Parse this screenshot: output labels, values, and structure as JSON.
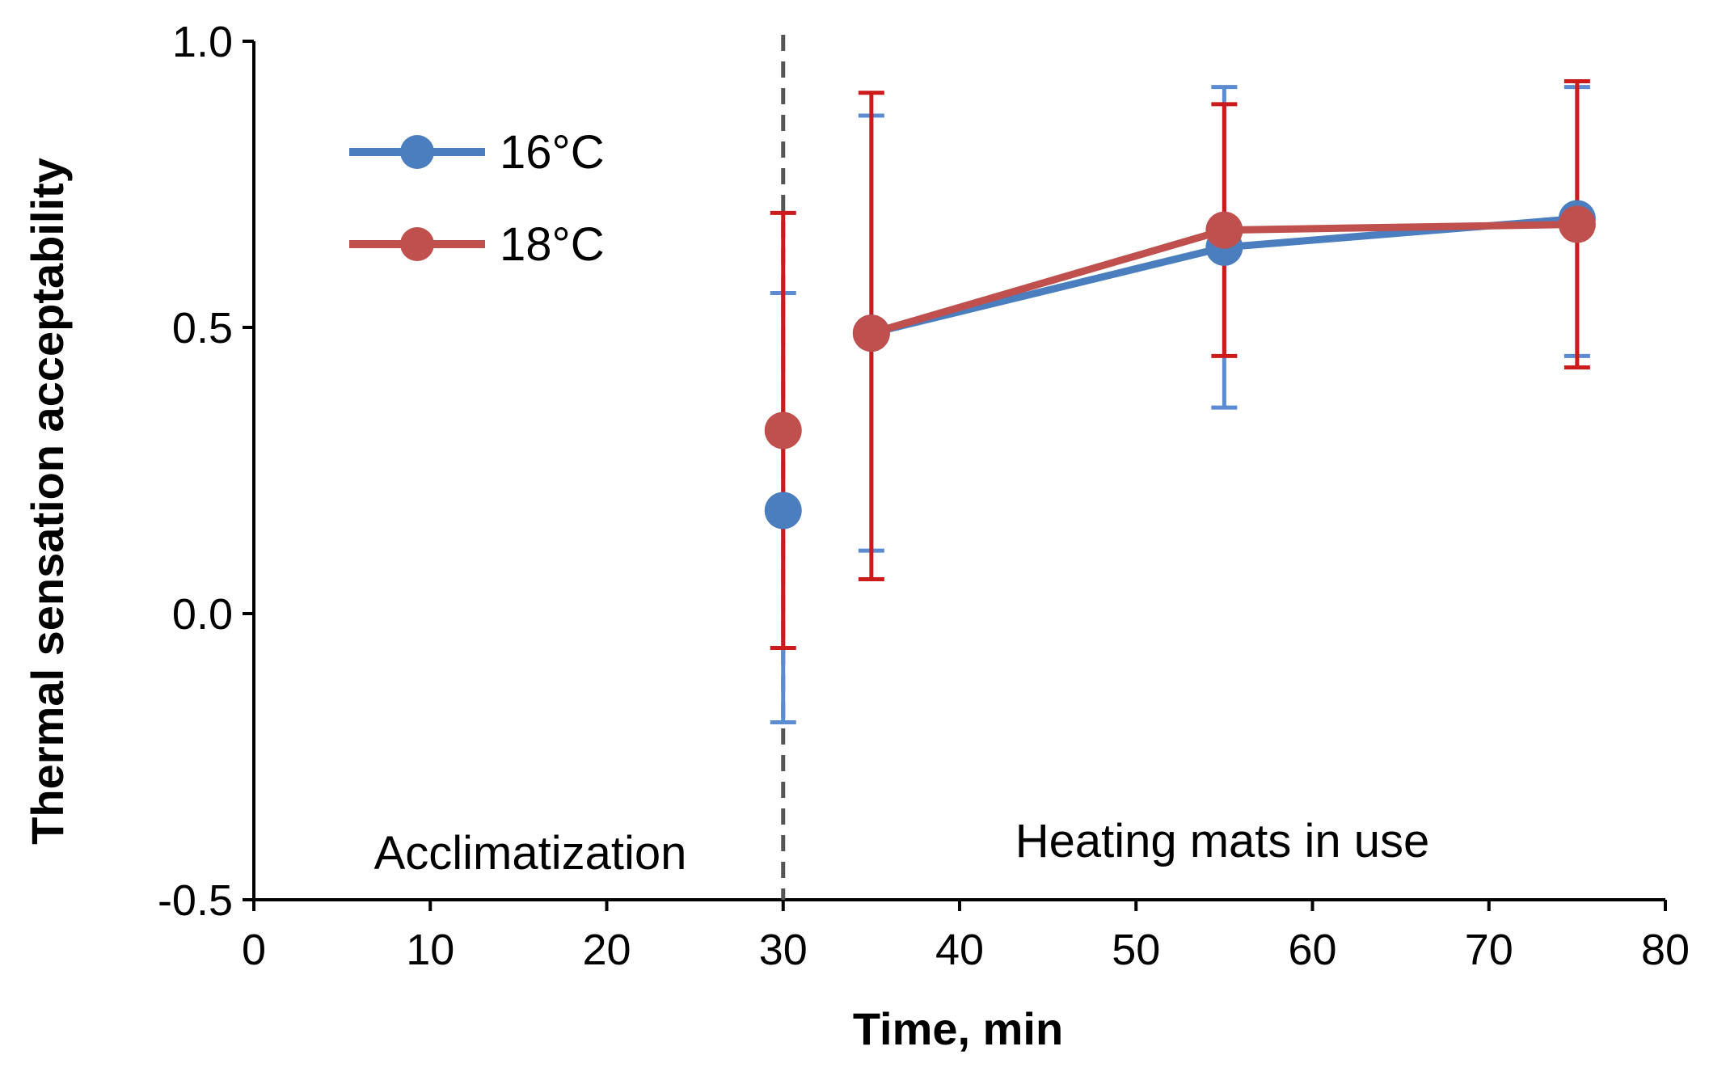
{
  "chart_data": {
    "type": "line",
    "title": "",
    "xlabel": "Time, min",
    "ylabel": "Thermal sensation acceptability",
    "xlim": [
      0,
      80
    ],
    "ylim": [
      -0.5,
      1.0
    ],
    "xticks": [
      0,
      10,
      20,
      30,
      40,
      50,
      60,
      70,
      80
    ],
    "xtick_labels": [
      "0",
      "10",
      "20",
      "30",
      "40",
      "50",
      "60",
      "70",
      "80"
    ],
    "yticks": [
      -0.5,
      0.0,
      0.5,
      1.0
    ],
    "ytick_labels": [
      "-0.5",
      "0.0",
      "0.5",
      "1.0"
    ],
    "grid": false,
    "legend_position": "top-left",
    "vline": {
      "x": 30,
      "style": "dashed",
      "color": "#555555"
    },
    "annotations": [
      {
        "text": "Acclimatization",
        "x": 15,
        "y": -0.42
      },
      {
        "text": "Heating mats in use",
        "x": 55,
        "y": -0.42
      }
    ],
    "series": [
      {
        "name": "16°C",
        "color": "#4a7ebf",
        "err_color": "#5b8bd0",
        "x": [
          30,
          35,
          55,
          75
        ],
        "y": [
          0.18,
          0.49,
          0.64,
          0.69
        ],
        "err_low": [
          -0.19,
          0.11,
          0.36,
          0.45
        ],
        "err_high": [
          0.56,
          0.87,
          0.92,
          0.92
        ]
      },
      {
        "name": "18°C",
        "color": "#c0504d",
        "err_color": "#cc1b1b",
        "x": [
          30,
          35,
          55,
          75
        ],
        "y": [
          0.32,
          0.49,
          0.67,
          0.68
        ],
        "err_low": [
          -0.06,
          0.06,
          0.45,
          0.43
        ],
        "err_high": [
          0.7,
          0.91,
          0.89,
          0.93
        ]
      }
    ]
  }
}
